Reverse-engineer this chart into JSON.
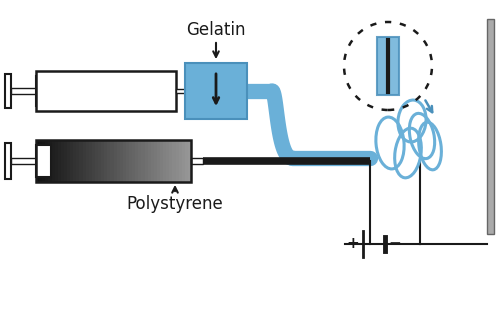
{
  "bg_color": "#ffffff",
  "blue_color": "#6ab0d8",
  "blue_dark": "#4a90bb",
  "black_color": "#1a1a1a",
  "gray_dark": "#222222",
  "gray_light": "#bbbbbb",
  "white_color": "#ffffff",
  "label_gelatin": "Gelatin",
  "label_polystyrene": "Polystyrene",
  "label_plus": "+",
  "label_minus": "−",
  "label_fontsize": 12,
  "tube_lw": 11,
  "needle_lw": 5,
  "gradient_dark": "#111111",
  "gradient_light": "#999999"
}
